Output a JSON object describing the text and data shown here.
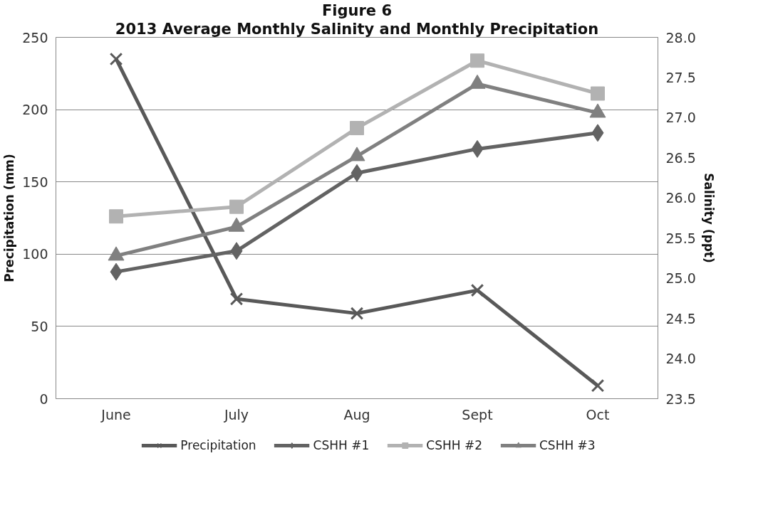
{
  "chart_data": {
    "type": "line",
    "title": "Figure 6",
    "subtitle": "2013 Average Monthly Salinity and Monthly Precipitation",
    "ylabel": "Precipitation (mm)",
    "y2label": "Salinity (ppt)",
    "categories": [
      "June",
      "July",
      "Aug",
      "Sept",
      "Oct"
    ],
    "series": [
      {
        "name": "Precipitation",
        "color": "#595959",
        "marker": "cross",
        "values": [
          235,
          69,
          59,
          75,
          9
        ]
      },
      {
        "name": "CSHH #1",
        "color": "#636363",
        "marker": "diamond",
        "axis": "y2",
        "values": [
          25.08,
          25.34,
          26.31,
          26.61,
          26.81
        ]
      },
      {
        "name": "CSHH #2",
        "color": "#b2b2b2",
        "marker": "square",
        "axis": "y2",
        "values": [
          25.77,
          25.89,
          26.87,
          27.71,
          27.3
        ]
      },
      {
        "name": "CSHH #3",
        "color": "#808080",
        "marker": "triangle",
        "axis": "y2",
        "values": [
          25.28,
          25.64,
          26.52,
          27.42,
          27.06
        ]
      }
    ],
    "ylim": [
      0,
      250
    ],
    "yticks": [
      0,
      50,
      100,
      150,
      200,
      250
    ],
    "y2lim": [
      23.5,
      28.0
    ],
    "y2ticks": [
      {
        "value": 23.5,
        "label": "23.5"
      },
      {
        "value": 24.0,
        "label": "24.0"
      },
      {
        "value": 24.5,
        "label": "24.5"
      },
      {
        "value": 25.0,
        "label": "25.0"
      },
      {
        "value": 25.5,
        "label": "25.5"
      },
      {
        "value": 26.0,
        "label": "26.0"
      },
      {
        "value": 26.5,
        "label": "26.5"
      },
      {
        "value": 27.0,
        "label": "27.0"
      },
      {
        "value": 27.5,
        "label": "27.5"
      },
      {
        "value": 28.0,
        "label": "28.0"
      }
    ],
    "grid": "y",
    "legend": "bottom",
    "line_style": "solid"
  }
}
